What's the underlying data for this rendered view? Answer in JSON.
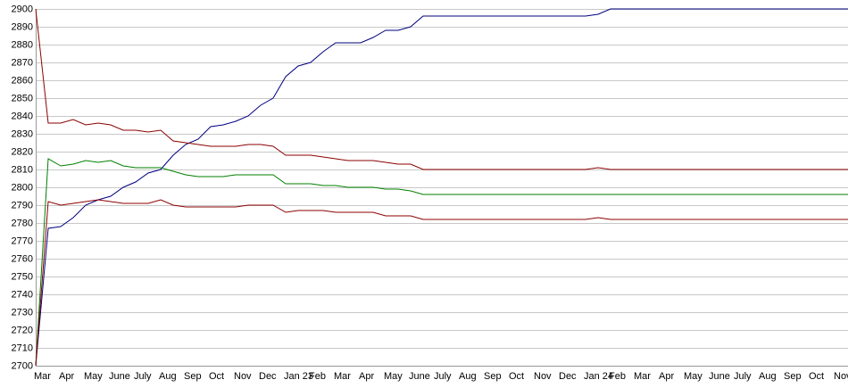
{
  "chart_data": {
    "type": "line",
    "categories": [
      "Mar",
      null,
      "Apr",
      null,
      "May",
      null,
      "June",
      null,
      "July",
      null,
      "Aug",
      null,
      "Sep",
      null,
      "Oct",
      null,
      "Nov",
      null,
      "Dec",
      null,
      "Jan 23",
      null,
      "Feb",
      null,
      "Mar",
      null,
      "Apr",
      null,
      "May",
      null,
      "June",
      null,
      "July",
      null,
      "Aug",
      null,
      "Sep",
      null,
      "Oct",
      null,
      "Nov",
      null,
      "Dec",
      null,
      "Jan 24",
      null,
      "Feb",
      null,
      "Mar",
      null,
      "Apr",
      null,
      "May",
      null,
      "June",
      null,
      "July",
      null,
      "Aug",
      null,
      "Sep",
      null,
      "Oct",
      null,
      "Nov",
      null
    ],
    "series": [
      {
        "color": "#00007f",
        "values": [
          2700,
          2777,
          2778,
          2783,
          2790,
          2793,
          2795,
          2800,
          2803,
          2808,
          2810,
          2818,
          2824,
          2827,
          2834,
          2835,
          2837,
          2840,
          2846,
          2850,
          2862,
          2868,
          2870,
          2876,
          2881,
          2881,
          2881,
          2884,
          2888,
          2888,
          2890,
          2896,
          2896,
          2896,
          2896,
          2896,
          2896,
          2896,
          2896,
          2896,
          2896,
          2896,
          2896,
          2896,
          2896,
          2897,
          2900,
          2900,
          2900,
          2900,
          2900,
          2900,
          2900,
          2900,
          2900,
          2900,
          2900,
          2900,
          2900,
          2900,
          2900,
          2900,
          2900,
          2900,
          2900,
          2900
        ]
      },
      {
        "color": "#8b0000",
        "values": [
          2900,
          2836,
          2836,
          2838,
          2835,
          2836,
          2835,
          2832,
          2832,
          2831,
          2832,
          2826,
          2825,
          2824,
          2823,
          2823,
          2823,
          2824,
          2824,
          2823,
          2818,
          2818,
          2818,
          2817,
          2816,
          2815,
          2815,
          2815,
          2814,
          2813,
          2813,
          2810,
          2810,
          2810,
          2810,
          2810,
          2810,
          2810,
          2810,
          2810,
          2810,
          2810,
          2810,
          2810,
          2810,
          2811,
          2810,
          2810,
          2810,
          2810,
          2810,
          2810,
          2810,
          2810,
          2810,
          2810,
          2810,
          2810,
          2810,
          2810,
          2810,
          2810,
          2810,
          2810,
          2810,
          2810
        ]
      },
      {
        "color": "#007f00",
        "values": [
          2700,
          2816,
          2812,
          2813,
          2815,
          2814,
          2815,
          2812,
          2811,
          2811,
          2811,
          2809,
          2807,
          2806,
          2806,
          2806,
          2807,
          2807,
          2807,
          2807,
          2802,
          2802,
          2802,
          2801,
          2801,
          2800,
          2800,
          2800,
          2799,
          2799,
          2798,
          2796,
          2796,
          2796,
          2796,
          2796,
          2796,
          2796,
          2796,
          2796,
          2796,
          2796,
          2796,
          2796,
          2796,
          2796,
          2796,
          2796,
          2796,
          2796,
          2796,
          2796,
          2796,
          2796,
          2796,
          2796,
          2796,
          2796,
          2796,
          2796,
          2796,
          2796,
          2796,
          2796,
          2796,
          2796
        ]
      },
      {
        "color": "#8b0000",
        "values": [
          2700,
          2792,
          2790,
          2791,
          2792,
          2793,
          2792,
          2791,
          2791,
          2791,
          2793,
          2790,
          2789,
          2789,
          2789,
          2789,
          2789,
          2790,
          2790,
          2790,
          2786,
          2787,
          2787,
          2787,
          2786,
          2786,
          2786,
          2786,
          2784,
          2784,
          2784,
          2782,
          2782,
          2782,
          2782,
          2782,
          2782,
          2782,
          2782,
          2782,
          2782,
          2782,
          2782,
          2782,
          2782,
          2783,
          2782,
          2782,
          2782,
          2782,
          2782,
          2782,
          2782,
          2782,
          2782,
          2782,
          2782,
          2782,
          2782,
          2782,
          2782,
          2782,
          2782,
          2782,
          2782,
          2782
        ]
      }
    ],
    "ylim": [
      2700,
      2900
    ],
    "yticks": [
      2700,
      2710,
      2720,
      2730,
      2740,
      2750,
      2760,
      2770,
      2780,
      2790,
      2800,
      2810,
      2820,
      2830,
      2840,
      2850,
      2860,
      2870,
      2880,
      2890,
      2900
    ],
    "grid": true
  }
}
